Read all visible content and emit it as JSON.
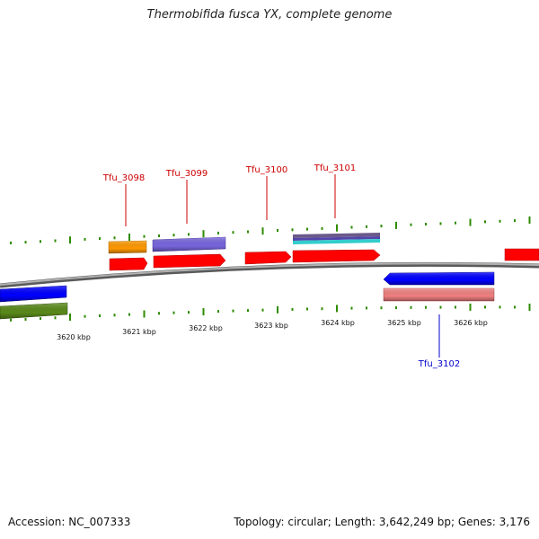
{
  "title": "Thermobifida fusca YX, complete genome",
  "footer": {
    "accession": "Accession: NC_007333",
    "summary": "Topology: circular; Length: 3,642,249 bp; Genes: 3,176"
  },
  "colors": {
    "backbone": "#8a8a8a",
    "tick": "#2e8b00",
    "forward_label": "#cc0000",
    "reverse_label": "#0000cc"
  },
  "scale_labels": [
    "3620 kbp",
    "3621 kbp",
    "3622 kbp",
    "3623 kbp",
    "3624 kbp",
    "3625 kbp",
    "3626 kbp"
  ],
  "gene_labels": [
    {
      "id": "Tfu_3098",
      "strand": "forward"
    },
    {
      "id": "Tfu_3099",
      "strand": "forward"
    },
    {
      "id": "Tfu_3100",
      "strand": "forward"
    },
    {
      "id": "Tfu_3101",
      "strand": "forward"
    },
    {
      "id": "Tfu_3102",
      "strand": "reverse"
    }
  ],
  "feature_colors": [
    "#ff0000",
    "#ff9900",
    "#7766dd",
    "#6a5a8a",
    "#33cccc",
    "#0000ff",
    "#f08080",
    "#5a8a1a"
  ]
}
